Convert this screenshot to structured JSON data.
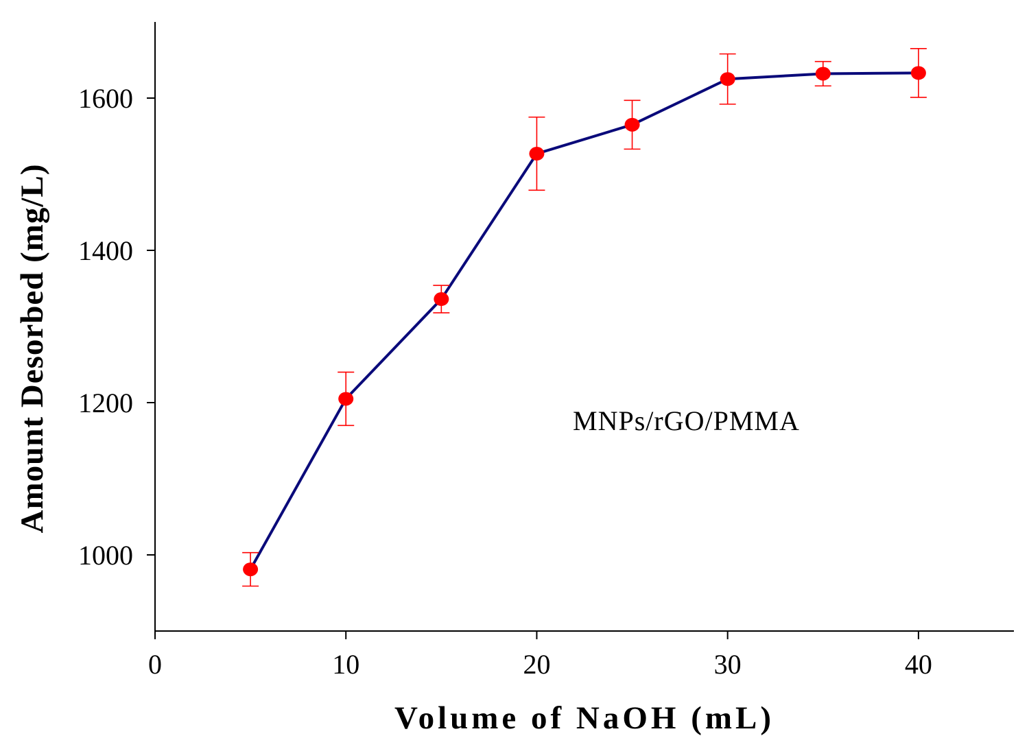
{
  "chart_data": {
    "type": "line",
    "title": "",
    "xlabel": "Volume of NaOH (mL)",
    "ylabel": "Amount Desorbed (mg/L)",
    "xlim": [
      0,
      45
    ],
    "ylim": [
      900,
      1700
    ],
    "xticks": [
      0,
      10,
      20,
      30,
      40
    ],
    "yticks": [
      1000,
      1200,
      1400,
      1600
    ],
    "grid": false,
    "annotation": "MNPs/rGO/PMMA",
    "series": [
      {
        "name": "MNPs/rGO/PMMA",
        "line_color": "#0a0a7a",
        "marker_color": "#ff0000",
        "errorbar_color": "#ff0000",
        "x": [
          5,
          10,
          15,
          20,
          25,
          30,
          35,
          40
        ],
        "y": [
          981,
          1205,
          1336,
          1527,
          1565,
          1625,
          1632,
          1633
        ],
        "error": [
          22,
          35,
          18,
          48,
          32,
          33,
          16,
          32
        ]
      }
    ]
  }
}
